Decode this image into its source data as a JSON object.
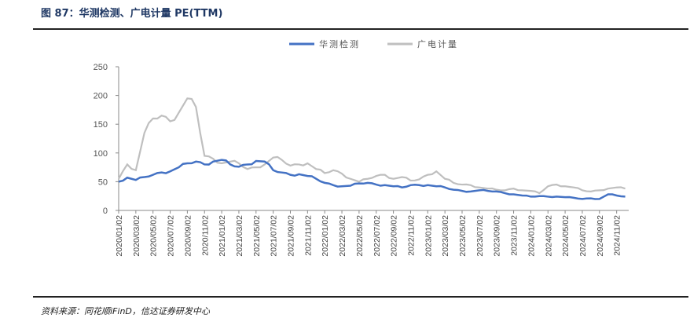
{
  "title": "图 87：华测检测、广电计量 PE(TTM)",
  "source": "资料来源：同花顺iFinD，信达证券研发中心",
  "chart_data": {
    "type": "line",
    "title": "华测检测、广电计量 PE(TTM)",
    "ylim": [
      0,
      250
    ],
    "yticks": [
      0,
      50,
      100,
      150,
      200,
      250
    ],
    "xticks": [
      "2020/01/02",
      "2020/03/02",
      "2020/05/02",
      "2020/07/02",
      "2020/09/02",
      "2020/11/02",
      "2021/01/02",
      "2021/03/02",
      "2021/05/02",
      "2021/07/02",
      "2021/09/02",
      "2021/11/02",
      "2022/01/02",
      "2022/03/02",
      "2022/05/02",
      "2022/07/02",
      "2022/09/02",
      "2022/11/02",
      "2023/01/02",
      "2023/03/02",
      "2023/05/02",
      "2023/07/02",
      "2023/09/02",
      "2023/11/02",
      "2024/01/02",
      "2024/03/02",
      "2024/05/02",
      "2024/07/02",
      "2024/09/02",
      "2024/11/02"
    ],
    "legend_position": "top-center",
    "x_unit": "month index from 2020/01",
    "series": [
      {
        "name": "华测检测",
        "color": "#4472c4",
        "values": [
          50,
          57,
          53,
          58,
          62,
          66,
          68,
          75,
          82,
          85,
          80,
          85,
          88,
          80,
          76,
          80,
          86,
          85,
          70,
          66,
          62,
          63,
          60,
          55,
          48,
          44,
          42,
          43,
          47,
          48,
          45,
          44,
          42,
          40,
          44,
          44,
          44,
          42,
          40,
          36,
          34,
          33,
          35,
          34,
          33,
          30,
          28,
          26,
          24,
          25,
          24,
          24,
          23,
          22,
          20,
          21,
          20,
          28,
          26,
          24
        ]
      },
      {
        "name": "广电计量",
        "color": "#bfbfbf",
        "values": [
          55,
          80,
          70,
          135,
          160,
          165,
          155,
          170,
          195,
          180,
          95,
          90,
          82,
          85,
          82,
          72,
          75,
          80,
          92,
          88,
          78,
          80,
          82,
          72,
          65,
          70,
          64,
          55,
          50,
          55,
          60,
          62,
          55,
          58,
          52,
          54,
          62,
          68,
          55,
          48,
          45,
          44,
          40,
          38,
          36,
          35,
          38,
          35,
          34,
          30,
          42,
          45,
          42,
          40,
          35,
          33,
          35,
          38,
          40,
          38
        ]
      }
    ]
  }
}
